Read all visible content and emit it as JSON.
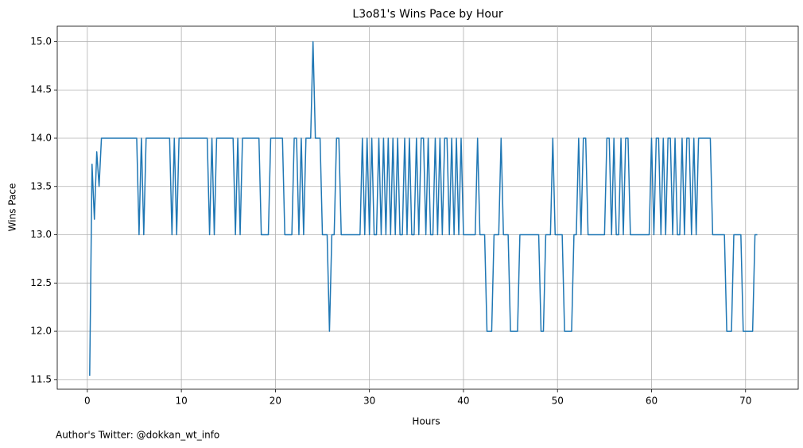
{
  "chart_data": {
    "type": "line",
    "title": "L3o81's Wins Pace by Hour",
    "xlabel": "Hours",
    "ylabel": "Wins Pace",
    "annotation": "Author's Twitter: @dokkan_wt_info",
    "x": [
      0.25,
      0.5,
      0.75,
      1.0,
      1.25,
      1.5,
      5.25,
      5.5,
      5.75,
      6.0,
      6.25,
      8.75,
      9.0,
      9.25,
      9.5,
      9.75,
      12.75,
      13.0,
      13.25,
      13.5,
      13.75,
      15.5,
      15.75,
      16.0,
      16.25,
      16.5,
      18.25,
      18.5,
      19.25,
      19.5,
      20.75,
      21.0,
      21.75,
      22.0,
      22.25,
      22.5,
      22.75,
      23.0,
      23.25,
      23.75,
      24.0,
      24.25,
      24.75,
      25.0,
      25.5,
      25.75,
      26.0,
      26.25,
      26.5,
      26.75,
      27.0,
      29.0,
      29.25,
      29.5,
      29.75,
      30.0,
      30.25,
      30.5,
      30.75,
      31.0,
      31.25,
      31.5,
      31.75,
      32.0,
      32.25,
      32.5,
      32.75,
      33.0,
      33.25,
      33.5,
      33.75,
      34.0,
      34.25,
      34.5,
      34.75,
      35.0,
      35.25,
      35.5,
      35.75,
      36.0,
      36.25,
      36.5,
      36.75,
      37.0,
      37.25,
      37.5,
      37.75,
      38.0,
      38.25,
      38.5,
      38.75,
      39.0,
      39.25,
      39.5,
      39.75,
      40.0,
      41.25,
      41.5,
      41.75,
      42.25,
      42.5,
      43.0,
      43.25,
      43.75,
      44.0,
      44.25,
      44.75,
      45.0,
      45.75,
      46.0,
      48.0,
      48.25,
      48.5,
      48.75,
      49.25,
      49.5,
      49.75,
      50.5,
      50.75,
      51.5,
      51.75,
      52.0,
      52.25,
      52.5,
      52.75,
      53.0,
      53.25,
      55.0,
      55.25,
      55.5,
      55.75,
      56.0,
      56.25,
      56.5,
      56.75,
      57.0,
      57.25,
      57.5,
      57.75,
      59.75,
      60.0,
      60.25,
      60.5,
      60.75,
      61.0,
      61.25,
      61.5,
      61.75,
      62.0,
      62.25,
      62.5,
      62.75,
      63.0,
      63.25,
      63.5,
      63.75,
      64.0,
      64.25,
      64.5,
      64.75,
      65.0,
      66.25,
      66.5,
      67.75,
      68.0,
      68.5,
      68.75,
      69.5,
      69.75,
      70.75,
      71.0,
      71.25
    ],
    "series": [
      {
        "name": "Wins Pace",
        "color": "#1f77b4",
        "values": [
          11.54,
          13.73,
          13.16,
          13.86,
          13.5,
          14,
          14,
          13,
          14,
          13,
          14,
          14,
          13,
          14,
          13,
          14,
          14,
          13,
          14,
          13,
          14,
          14,
          13,
          14,
          13,
          14,
          14,
          13,
          13,
          14,
          14,
          13,
          13,
          14,
          14,
          13,
          14,
          13,
          14,
          14,
          15,
          14,
          14,
          13,
          13,
          12,
          13,
          13,
          14,
          14,
          13,
          13,
          14,
          13,
          14,
          13,
          14,
          13,
          13,
          14,
          13,
          14,
          13,
          14,
          13,
          14,
          13,
          14,
          13,
          13,
          14,
          13,
          14,
          13,
          13,
          14,
          13,
          14,
          14,
          13,
          14,
          13,
          13,
          14,
          13,
          14,
          13,
          14,
          14,
          13,
          14,
          13,
          14,
          13,
          14,
          13,
          13,
          14,
          13,
          13,
          12,
          12,
          13,
          13,
          14,
          13,
          13,
          12,
          12,
          13,
          13,
          12,
          12,
          13,
          13,
          14,
          13,
          13,
          12,
          12,
          13,
          13,
          14,
          13,
          14,
          14,
          13,
          13,
          14,
          14,
          13,
          14,
          13,
          13,
          14,
          13,
          14,
          14,
          13,
          13,
          14,
          13,
          14,
          14,
          13,
          14,
          13,
          14,
          14,
          13,
          14,
          13,
          13,
          14,
          13,
          14,
          14,
          13,
          14,
          13,
          14,
          14,
          13,
          13,
          12,
          12,
          13,
          13,
          12,
          12,
          13,
          13
        ]
      }
    ],
    "xlim": [
      -3.2,
      75.6
    ],
    "ylim": [
      11.4,
      15.16
    ],
    "xticks": [
      0,
      10,
      20,
      30,
      40,
      50,
      60,
      70
    ],
    "yticks": [
      11.5,
      {
        "value": 12.0,
        "label": "12.0"
      },
      12.5,
      {
        "value": 13.0,
        "label": "13.0"
      },
      13.5,
      {
        "value": 14.0,
        "label": "14.0"
      },
      14.5,
      {
        "value": 15.0,
        "label": "15.0"
      }
    ],
    "grid": true
  }
}
